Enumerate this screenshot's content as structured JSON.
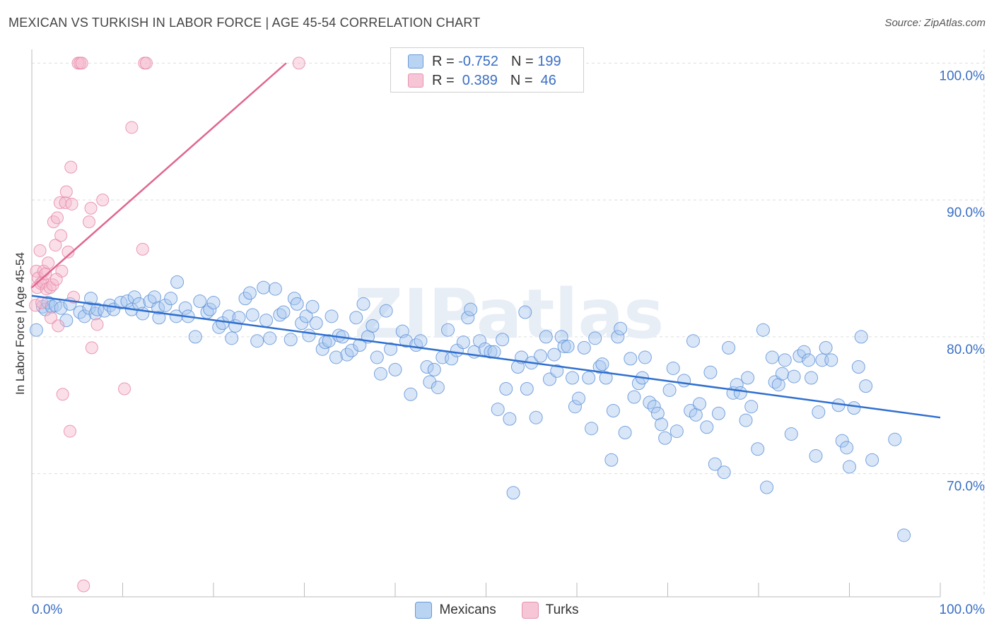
{
  "title": "MEXICAN VS TURKISH IN LABOR FORCE | AGE 45-54 CORRELATION CHART",
  "source": "Source: ZipAtlas.com",
  "watermark": "ZIPatlas",
  "colors": {
    "mexicans_fill": "#a8c8f0",
    "mexicans_stroke": "#5b8fd6",
    "mexicans_line": "#2f6fcf",
    "turks_fill": "#f5b8cb",
    "turks_stroke": "#e88aa8",
    "turks_line": "#e06690",
    "tick_label": "#3a6fc4",
    "grid": "#dddddd"
  },
  "legend": {
    "mexicans": {
      "r_label": "R = ",
      "r_value": "-0.752",
      "n_label": "N = ",
      "n_value": "199"
    },
    "turks": {
      "r_label": "R = ",
      "r_value": " 0.389",
      "n_label": "N = ",
      "n_value": " 46"
    }
  },
  "chart_data": {
    "type": "scatter",
    "title": "MEXICAN VS TURKISH IN LABOR FORCE | AGE 45-54 CORRELATION CHART",
    "xlabel": "",
    "ylabel": "In Labor Force | Age 45-54",
    "xlim": [
      0,
      100
    ],
    "ylim": [
      61,
      101
    ],
    "x_tick_labels": [
      "0.0%",
      "100.0%"
    ],
    "y_ticks": [
      70,
      80,
      90,
      100
    ],
    "y_tick_labels": [
      "70.0%",
      "80.0%",
      "90.0%",
      "100.0%"
    ],
    "legend_position": "top-center",
    "series": [
      {
        "name": "Mexicans",
        "trend": {
          "x": [
            0,
            100
          ],
          "y": [
            83.0,
            74.1
          ]
        },
        "points": [
          [
            0.5,
            80.5
          ],
          [
            1.2,
            82.2
          ],
          [
            1.5,
            82.0
          ],
          [
            1.8,
            82.5
          ],
          [
            2.2,
            82.2
          ],
          [
            2.6,
            82.3
          ],
          [
            3.2,
            82.1
          ],
          [
            3.8,
            81.2
          ],
          [
            4.2,
            82.4
          ],
          [
            5.3,
            81.8
          ],
          [
            5.8,
            81.5
          ],
          [
            6.3,
            82.1
          ],
          [
            6.5,
            82.8
          ],
          [
            7.0,
            81.7
          ],
          [
            7.2,
            82.0
          ],
          [
            8.0,
            81.9
          ],
          [
            8.6,
            82.3
          ],
          [
            9.0,
            82.0
          ],
          [
            9.8,
            82.5
          ],
          [
            10.5,
            82.6
          ],
          [
            11.0,
            82.0
          ],
          [
            11.3,
            82.9
          ],
          [
            11.8,
            82.4
          ],
          [
            12.2,
            81.7
          ],
          [
            13.0,
            82.6
          ],
          [
            13.5,
            82.9
          ],
          [
            13.9,
            82.1
          ],
          [
            14.0,
            81.4
          ],
          [
            14.7,
            82.3
          ],
          [
            15.3,
            82.8
          ],
          [
            15.9,
            81.5
          ],
          [
            16.0,
            84.0
          ],
          [
            16.9,
            82.1
          ],
          [
            17.2,
            81.5
          ],
          [
            18.0,
            80.0
          ],
          [
            18.5,
            82.6
          ],
          [
            19.3,
            81.8
          ],
          [
            19.6,
            82.0
          ],
          [
            20.0,
            82.5
          ],
          [
            20.6,
            80.7
          ],
          [
            21.0,
            81.0
          ],
          [
            21.7,
            81.5
          ],
          [
            22.0,
            79.9
          ],
          [
            22.4,
            80.8
          ],
          [
            22.8,
            81.4
          ],
          [
            23.5,
            82.8
          ],
          [
            24.0,
            83.2
          ],
          [
            24.3,
            81.6
          ],
          [
            24.8,
            79.7
          ],
          [
            25.5,
            83.6
          ],
          [
            25.8,
            81.2
          ],
          [
            26.2,
            79.9
          ],
          [
            26.8,
            83.5
          ],
          [
            27.3,
            81.6
          ],
          [
            27.7,
            81.8
          ],
          [
            28.5,
            79.8
          ],
          [
            28.9,
            82.8
          ],
          [
            29.2,
            82.4
          ],
          [
            29.7,
            81.0
          ],
          [
            30.2,
            81.5
          ],
          [
            30.5,
            80.1
          ],
          [
            30.9,
            82.2
          ],
          [
            31.3,
            81.0
          ],
          [
            32.0,
            79.1
          ],
          [
            32.3,
            79.6
          ],
          [
            32.7,
            79.7
          ],
          [
            33.0,
            81.5
          ],
          [
            33.5,
            78.5
          ],
          [
            33.8,
            80.1
          ],
          [
            34.2,
            80.0
          ],
          [
            34.7,
            78.7
          ],
          [
            35.2,
            79.0
          ],
          [
            35.7,
            81.4
          ],
          [
            36.1,
            79.4
          ],
          [
            36.5,
            82.4
          ],
          [
            37.0,
            80.0
          ],
          [
            37.5,
            80.8
          ],
          [
            38.0,
            78.5
          ],
          [
            38.4,
            77.3
          ],
          [
            39.0,
            81.9
          ],
          [
            39.5,
            79.1
          ],
          [
            40.0,
            77.6
          ],
          [
            40.8,
            80.4
          ],
          [
            41.2,
            79.7
          ],
          [
            41.7,
            75.8
          ],
          [
            42.3,
            79.4
          ],
          [
            42.8,
            79.7
          ],
          [
            43.5,
            77.8
          ],
          [
            43.8,
            76.7
          ],
          [
            44.3,
            77.6
          ],
          [
            44.7,
            76.3
          ],
          [
            45.2,
            78.5
          ],
          [
            45.8,
            80.5
          ],
          [
            46.2,
            78.4
          ],
          [
            46.8,
            79.0
          ],
          [
            47.5,
            79.6
          ],
          [
            48.0,
            81.4
          ],
          [
            48.3,
            82.0
          ],
          [
            48.7,
            78.9
          ],
          [
            49.3,
            79.7
          ],
          [
            49.9,
            79.1
          ],
          [
            50.5,
            78.9
          ],
          [
            50.9,
            78.9
          ],
          [
            51.3,
            74.7
          ],
          [
            51.8,
            79.8
          ],
          [
            52.2,
            76.2
          ],
          [
            52.6,
            74.0
          ],
          [
            53.0,
            68.6
          ],
          [
            53.5,
            77.8
          ],
          [
            53.9,
            78.5
          ],
          [
            54.3,
            81.8
          ],
          [
            54.5,
            76.2
          ],
          [
            55.0,
            78.1
          ],
          [
            55.5,
            74.1
          ],
          [
            56.0,
            78.6
          ],
          [
            56.6,
            80.0
          ],
          [
            57.0,
            76.9
          ],
          [
            57.5,
            78.7
          ],
          [
            57.8,
            77.5
          ],
          [
            58.3,
            80.0
          ],
          [
            58.6,
            79.3
          ],
          [
            59.0,
            79.3
          ],
          [
            59.5,
            77.0
          ],
          [
            59.8,
            74.9
          ],
          [
            60.2,
            75.5
          ],
          [
            60.8,
            79.2
          ],
          [
            61.3,
            77.0
          ],
          [
            61.6,
            73.3
          ],
          [
            62.0,
            79.9
          ],
          [
            62.5,
            77.8
          ],
          [
            62.8,
            78.0
          ],
          [
            63.2,
            77.0
          ],
          [
            63.8,
            71.0
          ],
          [
            64.0,
            74.6
          ],
          [
            64.5,
            80.0
          ],
          [
            64.8,
            80.6
          ],
          [
            65.3,
            73.0
          ],
          [
            65.9,
            78.4
          ],
          [
            66.3,
            75.6
          ],
          [
            66.8,
            76.6
          ],
          [
            67.2,
            77.0
          ],
          [
            67.5,
            78.5
          ],
          [
            68.0,
            75.2
          ],
          [
            68.5,
            74.9
          ],
          [
            68.9,
            74.4
          ],
          [
            69.3,
            73.6
          ],
          [
            69.7,
            72.6
          ],
          [
            70.2,
            76.1
          ],
          [
            70.6,
            77.7
          ],
          [
            71.0,
            73.1
          ],
          [
            71.8,
            76.8
          ],
          [
            72.5,
            74.6
          ],
          [
            72.8,
            79.7
          ],
          [
            73.1,
            74.3
          ],
          [
            73.5,
            75.1
          ],
          [
            74.3,
            73.4
          ],
          [
            74.7,
            77.4
          ],
          [
            75.2,
            70.7
          ],
          [
            75.6,
            74.4
          ],
          [
            76.2,
            70.1
          ],
          [
            76.7,
            79.2
          ],
          [
            77.2,
            75.9
          ],
          [
            77.6,
            76.5
          ],
          [
            78.0,
            75.9
          ],
          [
            78.6,
            73.9
          ],
          [
            78.8,
            77.0
          ],
          [
            79.2,
            74.9
          ],
          [
            79.9,
            71.8
          ],
          [
            80.5,
            80.5
          ],
          [
            80.9,
            69.0
          ],
          [
            81.5,
            78.5
          ],
          [
            81.8,
            76.7
          ],
          [
            82.2,
            76.5
          ],
          [
            82.6,
            77.3
          ],
          [
            82.9,
            78.3
          ],
          [
            83.6,
            72.9
          ],
          [
            83.9,
            77.1
          ],
          [
            84.5,
            78.6
          ],
          [
            85.0,
            78.9
          ],
          [
            85.5,
            78.3
          ],
          [
            85.8,
            77.0
          ],
          [
            86.3,
            71.3
          ],
          [
            86.6,
            74.5
          ],
          [
            87.0,
            78.3
          ],
          [
            87.4,
            79.2
          ],
          [
            88.0,
            78.3
          ],
          [
            88.8,
            75.0
          ],
          [
            89.2,
            72.4
          ],
          [
            89.7,
            71.9
          ],
          [
            90.0,
            70.5
          ],
          [
            90.5,
            74.8
          ],
          [
            91.0,
            77.8
          ],
          [
            91.3,
            80.0
          ],
          [
            91.8,
            76.4
          ],
          [
            92.5,
            71.0
          ],
          [
            96.0,
            65.5
          ],
          [
            95.0,
            72.5
          ]
        ]
      },
      {
        "name": "Turks",
        "trend": {
          "x": [
            0,
            28
          ],
          "y": [
            83.6,
            100.0
          ]
        },
        "points": [
          [
            0.4,
            82.3
          ],
          [
            0.5,
            84.8
          ],
          [
            0.6,
            83.6
          ],
          [
            0.7,
            84.3
          ],
          [
            0.9,
            86.3
          ],
          [
            1.0,
            83.9
          ],
          [
            1.1,
            82.5
          ],
          [
            1.2,
            84.0
          ],
          [
            1.3,
            84.8
          ],
          [
            1.5,
            84.6
          ],
          [
            1.6,
            83.5
          ],
          [
            1.8,
            85.4
          ],
          [
            2.0,
            83.6
          ],
          [
            2.1,
            81.4
          ],
          [
            2.3,
            83.8
          ],
          [
            2.4,
            88.4
          ],
          [
            2.6,
            86.7
          ],
          [
            2.8,
            88.7
          ],
          [
            2.9,
            80.8
          ],
          [
            3.1,
            89.8
          ],
          [
            3.2,
            87.4
          ],
          [
            3.3,
            84.8
          ],
          [
            3.4,
            75.8
          ],
          [
            3.7,
            89.8
          ],
          [
            3.8,
            90.6
          ],
          [
            4.0,
            86.2
          ],
          [
            4.2,
            73.1
          ],
          [
            4.3,
            92.4
          ],
          [
            4.4,
            89.7
          ],
          [
            4.6,
            82.9
          ],
          [
            5.1,
            100.0
          ],
          [
            5.3,
            100.0
          ],
          [
            5.5,
            100.0
          ],
          [
            5.7,
            61.8
          ],
          [
            6.3,
            88.4
          ],
          [
            6.5,
            89.4
          ],
          [
            6.6,
            79.2
          ],
          [
            7.2,
            80.9
          ],
          [
            7.8,
            90.0
          ],
          [
            10.2,
            76.2
          ],
          [
            11.0,
            95.3
          ],
          [
            12.2,
            86.4
          ],
          [
            12.4,
            100.0
          ],
          [
            12.6,
            100.0
          ],
          [
            29.4,
            100.0
          ],
          [
            2.7,
            84.2
          ]
        ]
      }
    ]
  }
}
